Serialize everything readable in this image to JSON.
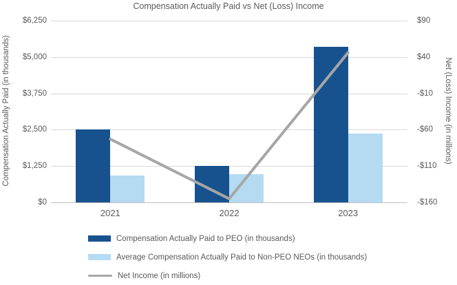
{
  "chart_data": {
    "type": "bar",
    "subtype": "grouped-bars-with-line-overlay",
    "title": "Compensation Actually Paid vs Net (Loss) Income",
    "categories": [
      "2021",
      "2022",
      "2023"
    ],
    "series": [
      {
        "name": "Compensation Actually Paid to PEO (in thousands)",
        "type": "bar",
        "axis": "left",
        "color": "#17528F",
        "values": [
          2500,
          1250,
          5340
        ]
      },
      {
        "name": "Average Compensation Actually Paid to Non-PEO NEOs (in thousands)",
        "type": "bar",
        "axis": "left",
        "color": "#B5DBF2",
        "values": [
          925,
          960,
          2370
        ]
      },
      {
        "name": "Net Income (in millions)",
        "type": "line",
        "axis": "right",
        "color": "#A6A6A6",
        "values": [
          -73,
          -155,
          46
        ]
      }
    ],
    "left_axis": {
      "label": "Compensation Actually Paid (in thousands)",
      "ticks": [
        "$6,250",
        "$5,000",
        "$3,750",
        "$2,500",
        "$1,250",
        "$0"
      ],
      "lim": [
        0,
        6250
      ]
    },
    "right_axis": {
      "label": "Net (Loss) Income (in millions)",
      "ticks": [
        "$90",
        "$40",
        "-$10",
        "-$60",
        "-$110",
        "-$160"
      ],
      "lim": [
        -160,
        90
      ]
    },
    "grid": true,
    "legend_position": "bottom-left"
  },
  "colors": {
    "peo_bar": "#17528F",
    "non_peo_bar": "#B5DBF2",
    "net_income_line": "#A6A6A6",
    "gridline": "#D9D9D9",
    "axis_line": "#BFBFBF",
    "text": "#595959"
  }
}
